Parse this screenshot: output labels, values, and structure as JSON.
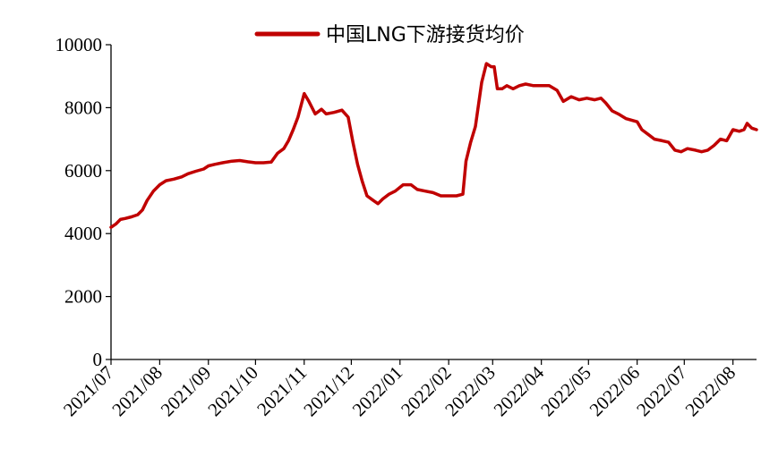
{
  "chart_data": {
    "type": "line",
    "title": "",
    "xlabel": "",
    "ylabel": "",
    "ylim": [
      0,
      10000
    ],
    "y_ticks": [
      0,
      2000,
      4000,
      6000,
      8000,
      10000
    ],
    "x_ticks": [
      "2021/07",
      "2021/08",
      "2021/09",
      "2021/10",
      "2021/11",
      "2021/12",
      "2022/01",
      "2022/02",
      "2022/03",
      "2022/04",
      "2022/05",
      "2022/06",
      "2022/07",
      "2022/08"
    ],
    "x_range": [
      "2021-07-01",
      "2022-08-16"
    ],
    "grid": false,
    "legend_position": "top-center",
    "series": [
      {
        "name": "中国LNG下游接货均价",
        "color": "#c00000",
        "points": [
          [
            "2021-07-01",
            4200
          ],
          [
            "2021-07-04",
            4300
          ],
          [
            "2021-07-07",
            4450
          ],
          [
            "2021-07-10",
            4480
          ],
          [
            "2021-07-14",
            4530
          ],
          [
            "2021-07-18",
            4600
          ],
          [
            "2021-07-21",
            4750
          ],
          [
            "2021-07-24",
            5050
          ],
          [
            "2021-07-28",
            5350
          ],
          [
            "2021-08-01",
            5550
          ],
          [
            "2021-08-05",
            5680
          ],
          [
            "2021-08-10",
            5730
          ],
          [
            "2021-08-15",
            5800
          ],
          [
            "2021-08-19",
            5900
          ],
          [
            "2021-08-24",
            5980
          ],
          [
            "2021-08-29",
            6050
          ],
          [
            "2021-09-01",
            6150
          ],
          [
            "2021-09-05",
            6200
          ],
          [
            "2021-09-10",
            6250
          ],
          [
            "2021-09-16",
            6300
          ],
          [
            "2021-09-21",
            6320
          ],
          [
            "2021-09-26",
            6280
          ],
          [
            "2021-10-01",
            6250
          ],
          [
            "2021-10-06",
            6250
          ],
          [
            "2021-10-11",
            6270
          ],
          [
            "2021-10-15",
            6550
          ],
          [
            "2021-10-19",
            6700
          ],
          [
            "2021-10-22",
            6950
          ],
          [
            "2021-10-25",
            7300
          ],
          [
            "2021-10-28",
            7700
          ],
          [
            "2021-11-01",
            8450
          ],
          [
            "2021-11-04",
            8200
          ],
          [
            "2021-11-08",
            7800
          ],
          [
            "2021-11-12",
            7950
          ],
          [
            "2021-11-15",
            7800
          ],
          [
            "2021-11-20",
            7850
          ],
          [
            "2021-11-25",
            7920
          ],
          [
            "2021-11-29",
            7700
          ],
          [
            "2021-12-02",
            6900
          ],
          [
            "2021-12-05",
            6200
          ],
          [
            "2021-12-08",
            5650
          ],
          [
            "2021-12-11",
            5200
          ],
          [
            "2021-12-15",
            5050
          ],
          [
            "2021-12-18",
            4950
          ],
          [
            "2021-12-21",
            5100
          ],
          [
            "2021-12-25",
            5250
          ],
          [
            "2021-12-29",
            5350
          ],
          [
            "2022-01-03",
            5550
          ],
          [
            "2022-01-08",
            5550
          ],
          [
            "2022-01-12",
            5400
          ],
          [
            "2022-01-17",
            5350
          ],
          [
            "2022-01-22",
            5300
          ],
          [
            "2022-01-27",
            5200
          ],
          [
            "2022-02-01",
            5200
          ],
          [
            "2022-02-06",
            5200
          ],
          [
            "2022-02-10",
            5250
          ],
          [
            "2022-02-12",
            6300
          ],
          [
            "2022-02-15",
            6900
          ],
          [
            "2022-02-18",
            7400
          ],
          [
            "2022-02-20",
            8100
          ],
          [
            "2022-02-22",
            8800
          ],
          [
            "2022-02-25",
            9400
          ],
          [
            "2022-02-28",
            9300
          ],
          [
            "2022-03-02",
            9300
          ],
          [
            "2022-03-04",
            8600
          ],
          [
            "2022-03-07",
            8600
          ],
          [
            "2022-03-10",
            8700
          ],
          [
            "2022-03-14",
            8600
          ],
          [
            "2022-03-18",
            8700
          ],
          [
            "2022-03-22",
            8750
          ],
          [
            "2022-03-27",
            8700
          ],
          [
            "2022-04-01",
            8700
          ],
          [
            "2022-04-06",
            8700
          ],
          [
            "2022-04-11",
            8550
          ],
          [
            "2022-04-15",
            8200
          ],
          [
            "2022-04-20",
            8350
          ],
          [
            "2022-04-25",
            8250
          ],
          [
            "2022-04-30",
            8300
          ],
          [
            "2022-05-05",
            8250
          ],
          [
            "2022-05-09",
            8300
          ],
          [
            "2022-05-12",
            8150
          ],
          [
            "2022-05-16",
            7900
          ],
          [
            "2022-05-20",
            7800
          ],
          [
            "2022-05-25",
            7650
          ],
          [
            "2022-06-01",
            7550
          ],
          [
            "2022-06-04",
            7300
          ],
          [
            "2022-06-08",
            7150
          ],
          [
            "2022-06-12",
            7000
          ],
          [
            "2022-06-17",
            6950
          ],
          [
            "2022-06-21",
            6900
          ],
          [
            "2022-06-25",
            6650
          ],
          [
            "2022-06-29",
            6600
          ],
          [
            "2022-07-03",
            6700
          ],
          [
            "2022-07-08",
            6650
          ],
          [
            "2022-07-12",
            6600
          ],
          [
            "2022-07-16",
            6650
          ],
          [
            "2022-07-20",
            6800
          ],
          [
            "2022-07-24",
            7000
          ],
          [
            "2022-07-28",
            6950
          ],
          [
            "2022-08-01",
            7300
          ],
          [
            "2022-08-05",
            7250
          ],
          [
            "2022-08-08",
            7300
          ],
          [
            "2022-08-10",
            7500
          ],
          [
            "2022-08-13",
            7350
          ],
          [
            "2022-08-16",
            7300
          ]
        ]
      }
    ]
  }
}
